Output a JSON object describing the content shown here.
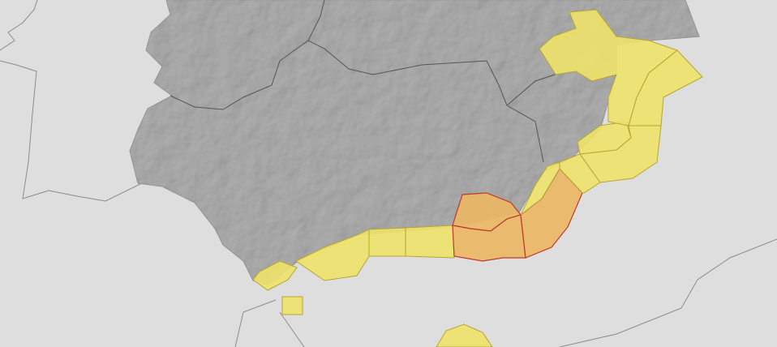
{
  "map": {
    "colors": {
      "background": "#dedede",
      "land": "#a9a9a9",
      "border": "#8c8c8c",
      "region_border": "#555555",
      "warning_yellow": "#eee26a",
      "warning_yellow_stroke": "#b8a530",
      "warning_orange": "#eab665",
      "warning_orange_stroke": "#c0392b"
    },
    "zones": [
      {
        "id": "gibraltar-strait",
        "level": "yellow"
      },
      {
        "id": "ceuta",
        "level": "yellow"
      },
      {
        "id": "costa-del-sol-west",
        "level": "yellow"
      },
      {
        "id": "costa-del-sol-mid",
        "level": "yellow"
      },
      {
        "id": "costa-del-sol-east",
        "level": "yellow"
      },
      {
        "id": "granada-coast",
        "level": "orange"
      },
      {
        "id": "granada-interior",
        "level": "orange"
      },
      {
        "id": "almeria-coast",
        "level": "orange"
      },
      {
        "id": "almeria-north",
        "level": "yellow"
      },
      {
        "id": "murcia-coast",
        "level": "yellow"
      },
      {
        "id": "murcia-interior",
        "level": "yellow"
      },
      {
        "id": "alicante-coast",
        "level": "yellow"
      },
      {
        "id": "valencia-interior",
        "level": "yellow"
      },
      {
        "id": "alboran-melilla",
        "level": "yellow"
      }
    ]
  }
}
